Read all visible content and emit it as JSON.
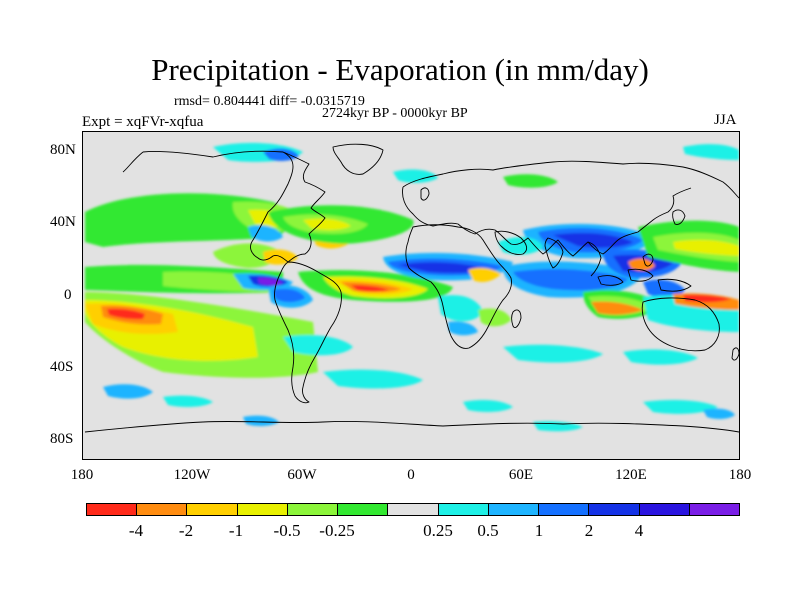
{
  "title": "Precipitation - Evaporation (in mm/day)",
  "stats": "rmsd= 0.804441 diff= -0.0315719",
  "period": "2724kyr BP - 0000kyr BP",
  "experiment": "Expt = xqFVr-xqfua",
  "season": "JJA",
  "map": {
    "lat_labels": [
      "80N",
      "40N",
      "0",
      "40S",
      "80S"
    ],
    "lon_labels": [
      "180",
      "120W",
      "60W",
      "0",
      "60E",
      "120E",
      "180"
    ],
    "background_color": "#e2e2e2",
    "land_outline_color": "#000000"
  },
  "colorbar": {
    "colors": [
      "#ff2a1a",
      "#ff8c10",
      "#ffcf00",
      "#e8f000",
      "#8cf53a",
      "#32e830",
      "#e2e2e2",
      "#1ef0e6",
      "#1eb4ff",
      "#1470ff",
      "#1432e6",
      "#2a14e0",
      "#7a1ee6"
    ],
    "labels": [
      "-4",
      "-2",
      "-1",
      "-0.5",
      "-0.25",
      "0.25",
      "0.5",
      "1",
      "2",
      "4"
    ]
  }
}
